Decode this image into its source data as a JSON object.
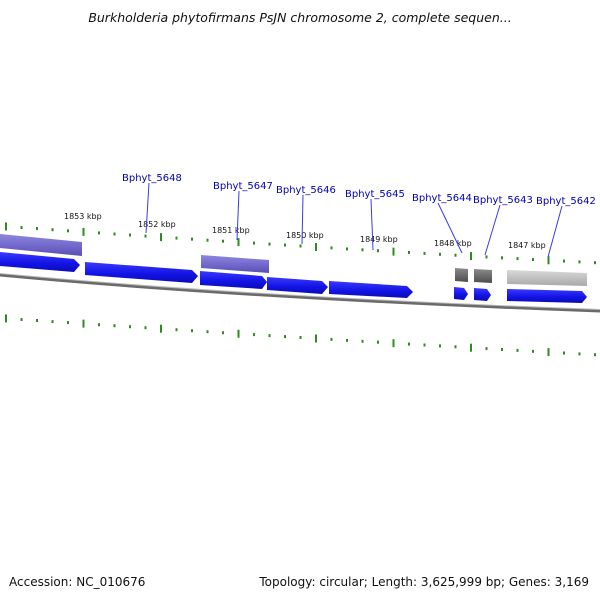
{
  "title": "Burkholderia phytofirmans PsJN chromosome 2, complete sequen...",
  "footer": {
    "accession": "Accession: NC_010676",
    "topology": "Topology: circular; Length: 3,625,999 bp; Genes: 3,169"
  },
  "colors": {
    "gene_forward": "#1a1aee",
    "gene_highlight": "#7a6fd0",
    "gene_dark": "#5e5e5e",
    "gene_light": "#bdbdbd",
    "backbone": "#808080",
    "tick_mark": "#2e8b1f",
    "label": "#0000b8",
    "leader": "#3a3aee"
  },
  "position_labels": [
    "1853 kbp",
    "1852 kbp",
    "1851 kbp",
    "1850 kbp",
    "1849 kbp",
    "1848 kbp",
    "1847 kbp"
  ],
  "gene_labels": [
    "Bphyt_5648",
    "Bphyt_5647",
    "Bphyt_5646",
    "Bphyt_5645",
    "Bphyt_5644",
    "Bphyt_5643",
    "Bphyt_5642"
  ]
}
